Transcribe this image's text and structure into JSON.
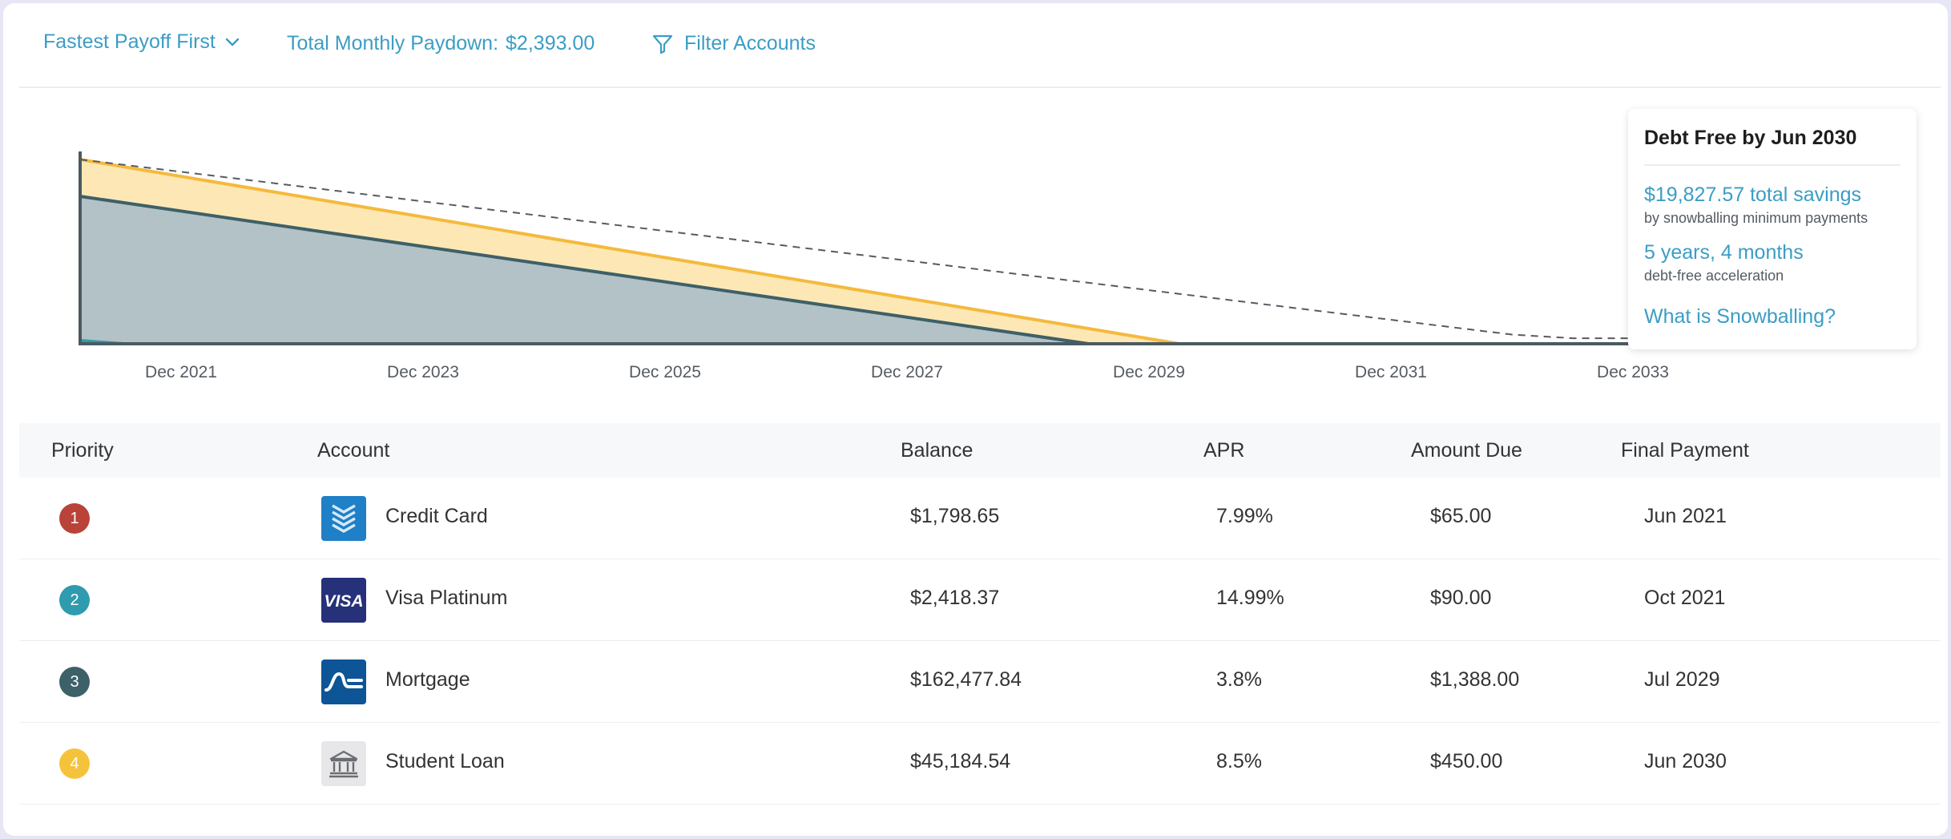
{
  "toolbar": {
    "strategy_label": "Fastest Payoff First",
    "paydown_label": "Total Monthly Paydown:",
    "paydown_value": "$2,393.00",
    "filter_label": "Filter Accounts"
  },
  "chart_data": {
    "type": "area",
    "title": "",
    "xlabel": "",
    "ylabel": "",
    "x_ticks": [
      "Dec 2021",
      "Dec 2023",
      "Dec 2025",
      "Dec 2027",
      "Dec 2029",
      "Dec 2031",
      "Dec 2033"
    ],
    "series": [
      {
        "name": "",
        "color": "#f5b93d",
        "fill": "#fde8b5",
        "x": [
          "Jan 2021",
          "Mar 2030"
        ],
        "values": [
          1.0,
          0.0
        ]
      },
      {
        "name": "",
        "color": "#3e6068",
        "fill": "#b3c2c6",
        "x": [
          "Jan 2021",
          "Jun 2029"
        ],
        "values": [
          0.8,
          0.0
        ]
      },
      {
        "name": "",
        "style": "dashed",
        "color": "#555b63",
        "x": [
          "Jan 2021",
          "Dec 2032",
          "Jun 2033"
        ],
        "values": [
          1.0,
          0.05,
          0.03
        ]
      }
    ],
    "colors": {
      "axis": "#4a5a60",
      "accent": "#3b9dc4"
    }
  },
  "summary": {
    "title": "Debt Free by Jun 2030",
    "savings_value": "$19,827.57 total savings",
    "savings_note": "by snowballing minimum payments",
    "accel_value": "5 years, 4 months",
    "accel_note": "debt-free acceleration",
    "link": "What is Snowballing?"
  },
  "table": {
    "headers": {
      "priority": "Priority",
      "account": "Account",
      "balance": "Balance",
      "apr": "APR",
      "amount_due": "Amount Due",
      "final_payment": "Final Payment"
    },
    "rows": [
      {
        "priority": "1",
        "badge_color": "#b94239",
        "icon": "chevron-stack-icon",
        "account": "Credit Card",
        "balance": "$1,798.65",
        "apr": "7.99%",
        "amount_due": "$65.00",
        "final_payment": "Jun 2021"
      },
      {
        "priority": "2",
        "badge_color": "#2e9bae",
        "icon": "visa-logo-icon",
        "icon_text": "VISA",
        "account": "Visa Platinum",
        "balance": "$2,418.37",
        "apr": "14.99%",
        "amount_due": "$90.00",
        "final_payment": "Oct 2021"
      },
      {
        "priority": "3",
        "badge_color": "#3e6068",
        "icon": "mortgage-logo-icon",
        "account": "Mortgage",
        "balance": "$162,477.84",
        "apr": "3.8%",
        "amount_due": "$1,388.00",
        "final_payment": "Jul 2029"
      },
      {
        "priority": "4",
        "badge_color": "#f5c33b",
        "icon": "bank-icon",
        "account": "Student Loan",
        "balance": "$45,184.54",
        "apr": "8.5%",
        "amount_due": "$450.00",
        "final_payment": "Jun 2030"
      }
    ]
  }
}
